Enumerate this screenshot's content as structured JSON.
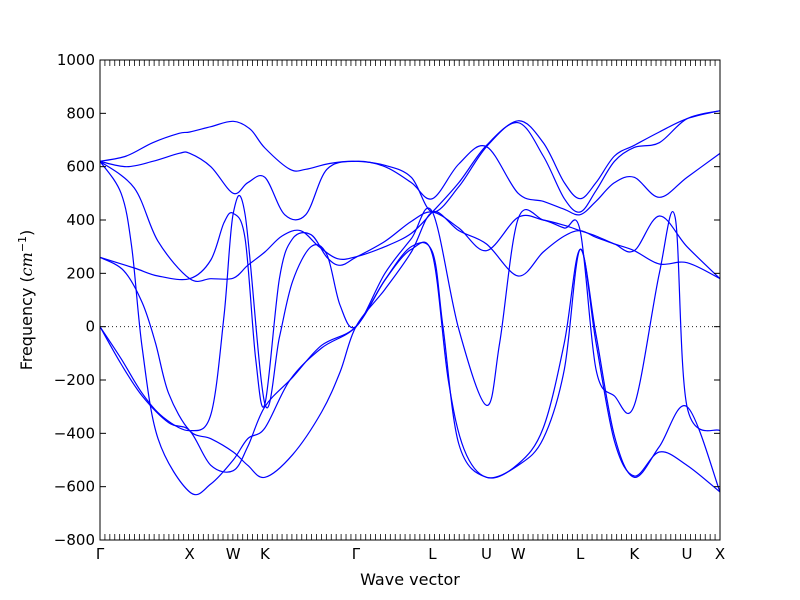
{
  "chart_data": {
    "type": "line",
    "title": "",
    "xlabel": "Wave vector",
    "ylabel": "Frequency (cm⁻¹)",
    "ylabel_parts": {
      "text": "Frequency (",
      "unit": "cm",
      "exponent": "−1",
      "close": ")"
    },
    "ylim": [
      -800,
      1000
    ],
    "yticks": [
      -800,
      -600,
      -400,
      -200,
      0,
      200,
      400,
      600,
      800,
      1000
    ],
    "xlim": [
      0,
      23.5
    ],
    "xticks": [
      {
        "label": "Γ",
        "x": 0
      },
      {
        "label": "X",
        "x": 3.4
      },
      {
        "label": "W",
        "x": 5.05
      },
      {
        "label": "K",
        "x": 6.25
      },
      {
        "label": "Γ",
        "x": 9.7
      },
      {
        "label": "L",
        "x": 12.6
      },
      {
        "label": "U",
        "x": 14.65
      },
      {
        "label": "W",
        "x": 15.85
      },
      {
        "label": "L",
        "x": 18.2
      },
      {
        "label": "K",
        "x": 20.25
      },
      {
        "label": "U",
        "x": 22.25
      },
      {
        "label": "X",
        "x": 23.5
      }
    ],
    "zero_line": {
      "y": 0,
      "style": "dotted"
    },
    "line_color": "#0000ff",
    "series": [
      {
        "points": [
          [
            0,
            620
          ],
          [
            1,
            640
          ],
          [
            2,
            690
          ],
          [
            3,
            725
          ],
          [
            3.4,
            730
          ],
          [
            4.2,
            750
          ],
          [
            5.05,
            770
          ],
          [
            5.7,
            740
          ],
          [
            6.25,
            670
          ],
          [
            7.2,
            590
          ],
          [
            7.8,
            590
          ],
          [
            8.7,
            612
          ],
          [
            9.7,
            620
          ],
          [
            10.8,
            605
          ],
          [
            11.8,
            560
          ],
          [
            12.6,
            430
          ],
          [
            13.6,
            525
          ],
          [
            14.65,
            675
          ],
          [
            15.85,
            772
          ],
          [
            16.8,
            690
          ],
          [
            17.6,
            540
          ],
          [
            18.2,
            480
          ],
          [
            18.8,
            540
          ],
          [
            19.5,
            640
          ],
          [
            20.25,
            680
          ],
          [
            21.2,
            730
          ],
          [
            22.25,
            780
          ],
          [
            23.5,
            810
          ]
        ]
      },
      {
        "points": [
          [
            0,
            620
          ],
          [
            1.3,
            520
          ],
          [
            2.2,
            320
          ],
          [
            3.4,
            180
          ],
          [
            4.2,
            180
          ],
          [
            5.05,
            182
          ],
          [
            5.6,
            230
          ],
          [
            6.25,
            280
          ],
          [
            6.9,
            340
          ],
          [
            7.6,
            360
          ],
          [
            8.3,
            300
          ],
          [
            9,
            255
          ],
          [
            9.7,
            262
          ],
          [
            10.8,
            300
          ],
          [
            11.8,
            350
          ],
          [
            12.6,
            430
          ],
          [
            13.6,
            540
          ],
          [
            14.65,
            680
          ],
          [
            15.85,
            765
          ],
          [
            16.8,
            640
          ],
          [
            17.6,
            480
          ],
          [
            18.2,
            430
          ],
          [
            18.8,
            510
          ],
          [
            19.5,
            620
          ],
          [
            20.25,
            672
          ],
          [
            21.2,
            690
          ],
          [
            22.25,
            780
          ],
          [
            23.5,
            810
          ]
        ]
      },
      {
        "points": [
          [
            0,
            260
          ],
          [
            1.3,
            220
          ],
          [
            2.2,
            190
          ],
          [
            3.4,
            180
          ],
          [
            4.2,
            250
          ],
          [
            4.7,
            390
          ],
          [
            5.05,
            425
          ],
          [
            5.5,
            330
          ],
          [
            5.9,
            -120
          ],
          [
            6.25,
            -290
          ],
          [
            6.8,
            180
          ],
          [
            7.3,
            330
          ],
          [
            8,
            345
          ],
          [
            8.6,
            260
          ],
          [
            9.1,
            230
          ],
          [
            9.7,
            260
          ],
          [
            10.8,
            320
          ],
          [
            11.8,
            395
          ],
          [
            12.6,
            430
          ],
          [
            13.6,
            370
          ],
          [
            14.65,
            285
          ],
          [
            15.85,
            410
          ],
          [
            16.8,
            400
          ],
          [
            17.6,
            380
          ],
          [
            18.2,
            360
          ],
          [
            18.8,
            340
          ],
          [
            19.5,
            310
          ],
          [
            20.25,
            285
          ],
          [
            21.2,
            415
          ],
          [
            22.25,
            300
          ],
          [
            23.5,
            180
          ]
        ]
      },
      {
        "points": [
          [
            0,
            260
          ],
          [
            0.9,
            210
          ],
          [
            1.6,
            90
          ],
          [
            2.1,
            -60
          ],
          [
            2.6,
            -250
          ],
          [
            3.4,
            -390
          ],
          [
            4.2,
            -420
          ],
          [
            5.05,
            -470
          ],
          [
            5.6,
            -520
          ],
          [
            6.25,
            -565
          ],
          [
            7.3,
            -480
          ],
          [
            8.4,
            -320
          ],
          [
            9.1,
            -170
          ],
          [
            9.7,
            0
          ],
          [
            10.8,
            140
          ],
          [
            11.8,
            280
          ],
          [
            12.6,
            430
          ],
          [
            13.6,
            360
          ],
          [
            14.65,
            310
          ],
          [
            15.85,
            190
          ],
          [
            16.8,
            280
          ],
          [
            17.6,
            340
          ],
          [
            18.2,
            360
          ],
          [
            18.8,
            335
          ],
          [
            19.5,
            310
          ],
          [
            20.25,
            285
          ],
          [
            21.2,
            235
          ],
          [
            22.25,
            240
          ],
          [
            23.5,
            180
          ]
        ]
      },
      {
        "points": [
          [
            0,
            0
          ],
          [
            0.8,
            -120
          ],
          [
            1.6,
            -250
          ],
          [
            2.4,
            -340
          ],
          [
            3.4,
            -390
          ],
          [
            4.2,
            -330
          ],
          [
            4.7,
            40
          ],
          [
            5.05,
            425
          ],
          [
            5.5,
            420
          ],
          [
            6.25,
            -290
          ],
          [
            6.8,
            -40
          ],
          [
            7.3,
            170
          ],
          [
            8,
            300
          ],
          [
            8.6,
            270
          ],
          [
            9.1,
            80
          ],
          [
            9.7,
            0
          ],
          [
            10.8,
            200
          ],
          [
            11.8,
            330
          ],
          [
            12.6,
            430
          ],
          [
            13.6,
            -10
          ],
          [
            14.65,
            -295
          ],
          [
            15.15,
            -60
          ],
          [
            15.85,
            405
          ],
          [
            16.8,
            400
          ],
          [
            17.6,
            370
          ],
          [
            18.2,
            360
          ],
          [
            18.8,
            -160
          ],
          [
            19.5,
            -260
          ],
          [
            20.25,
            -295
          ],
          [
            21.2,
            200
          ],
          [
            21.8,
            410
          ],
          [
            22.25,
            -300
          ],
          [
            23.5,
            -390
          ]
        ]
      },
      {
        "points": [
          [
            0,
            0
          ],
          [
            0.8,
            -140
          ],
          [
            1.6,
            -260
          ],
          [
            2.6,
            -360
          ],
          [
            3.4,
            -390
          ],
          [
            4.2,
            -520
          ],
          [
            5.05,
            -540
          ],
          [
            5.6,
            -450
          ],
          [
            6.25,
            -300
          ],
          [
            7.3,
            -190
          ],
          [
            8.4,
            -70
          ],
          [
            9.7,
            0
          ],
          [
            10.8,
            175
          ],
          [
            11.8,
            300
          ],
          [
            12.6,
            280
          ],
          [
            13,
            0
          ],
          [
            13.6,
            -440
          ],
          [
            14.65,
            -565
          ],
          [
            15.85,
            -515
          ],
          [
            16.8,
            -380
          ],
          [
            17.6,
            -60
          ],
          [
            18.2,
            290
          ],
          [
            18.8,
            -30
          ],
          [
            19.5,
            -410
          ],
          [
            20.25,
            -565
          ],
          [
            21.2,
            -450
          ],
          [
            22.25,
            -300
          ],
          [
            23.5,
            -620
          ]
        ]
      },
      {
        "points": [
          [
            0,
            620
          ],
          [
            0.8,
            500
          ],
          [
            1.2,
            300
          ],
          [
            1.6,
            -80
          ],
          [
            2.2,
            -420
          ],
          [
            3.4,
            -620
          ],
          [
            4.2,
            -590
          ],
          [
            5.05,
            -500
          ],
          [
            5.6,
            -420
          ],
          [
            6.25,
            -380
          ],
          [
            7.2,
            -200
          ],
          [
            8.4,
            -80
          ],
          [
            9.7,
            0
          ],
          [
            10.8,
            175
          ],
          [
            11.8,
            290
          ],
          [
            12.6,
            270
          ],
          [
            13.2,
            -200
          ],
          [
            13.8,
            -460
          ],
          [
            14.65,
            -565
          ],
          [
            15.85,
            -520
          ],
          [
            16.8,
            -420
          ],
          [
            17.6,
            -160
          ],
          [
            18.2,
            290
          ],
          [
            18.8,
            -60
          ],
          [
            19.5,
            -430
          ],
          [
            20.25,
            -560
          ],
          [
            21.2,
            -470
          ],
          [
            22.25,
            -520
          ],
          [
            23.5,
            -620
          ]
        ]
      },
      {
        "points": [
          [
            0,
            620
          ],
          [
            1,
            600
          ],
          [
            2,
            620
          ],
          [
            3,
            650
          ],
          [
            3.4,
            650
          ],
          [
            4.2,
            600
          ],
          [
            5.05,
            500
          ],
          [
            5.6,
            540
          ],
          [
            6.25,
            560
          ],
          [
            7,
            420
          ],
          [
            7.8,
            420
          ],
          [
            8.6,
            590
          ],
          [
            9.7,
            620
          ],
          [
            10.8,
            600
          ],
          [
            11.8,
            540
          ],
          [
            12.6,
            480
          ],
          [
            13.6,
            610
          ],
          [
            14.65,
            675
          ],
          [
            15.85,
            500
          ],
          [
            16.8,
            470
          ],
          [
            17.6,
            440
          ],
          [
            18.2,
            420
          ],
          [
            18.8,
            470
          ],
          [
            19.5,
            540
          ],
          [
            20.25,
            560
          ],
          [
            21.2,
            485
          ],
          [
            22.25,
            560
          ],
          [
            23.5,
            650
          ]
        ]
      }
    ]
  }
}
